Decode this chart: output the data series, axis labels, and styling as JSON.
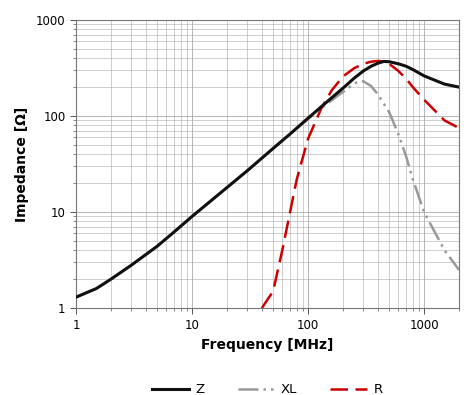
{
  "title": "",
  "xlabel": "Frequency [MHz]",
  "ylabel": "Impedance [Ω]",
  "xlim": [
    1,
    2000
  ],
  "ylim": [
    1,
    1000
  ],
  "background_color": "#ffffff",
  "grid_color": "#aaaaaa",
  "legend": [
    {
      "label": "Z",
      "color": "#111111",
      "linewidth": 2.2
    },
    {
      "label": "XL",
      "color": "#999999",
      "linewidth": 1.8
    },
    {
      "label": "R",
      "color": "#cc0000",
      "linewidth": 1.8
    }
  ],
  "Z_freq": [
    1,
    1.5,
    2,
    3,
    5,
    7,
    10,
    15,
    20,
    30,
    50,
    70,
    100,
    150,
    200,
    250,
    300,
    350,
    400,
    450,
    500,
    600,
    700,
    800,
    1000,
    1500,
    2000
  ],
  "Z_vals": [
    1.3,
    1.6,
    2.0,
    2.8,
    4.4,
    6.2,
    9.0,
    13.5,
    18,
    27,
    46,
    65,
    95,
    145,
    195,
    248,
    295,
    330,
    355,
    370,
    368,
    350,
    330,
    305,
    262,
    215,
    200
  ],
  "XL_freq": [
    1,
    1.5,
    2,
    3,
    5,
    7,
    10,
    15,
    20,
    30,
    50,
    70,
    100,
    150,
    200,
    250,
    280,
    300,
    350,
    400,
    500,
    600,
    700,
    800,
    1000,
    1500,
    2000
  ],
  "XL_vals": [
    1.3,
    1.6,
    2.0,
    2.8,
    4.4,
    6.2,
    9.0,
    13.5,
    18,
    27,
    46,
    65,
    93,
    138,
    178,
    218,
    232,
    230,
    205,
    168,
    110,
    65,
    38,
    22,
    10,
    4,
    2.5
  ],
  "R_freq": [
    40,
    50,
    60,
    70,
    80,
    100,
    130,
    160,
    200,
    250,
    300,
    350,
    400,
    450,
    500,
    600,
    700,
    800,
    1000,
    1500,
    2000
  ],
  "R_vals": [
    1.0,
    1.5,
    4,
    10,
    22,
    58,
    120,
    185,
    258,
    315,
    350,
    368,
    375,
    370,
    350,
    295,
    245,
    200,
    148,
    90,
    75
  ]
}
